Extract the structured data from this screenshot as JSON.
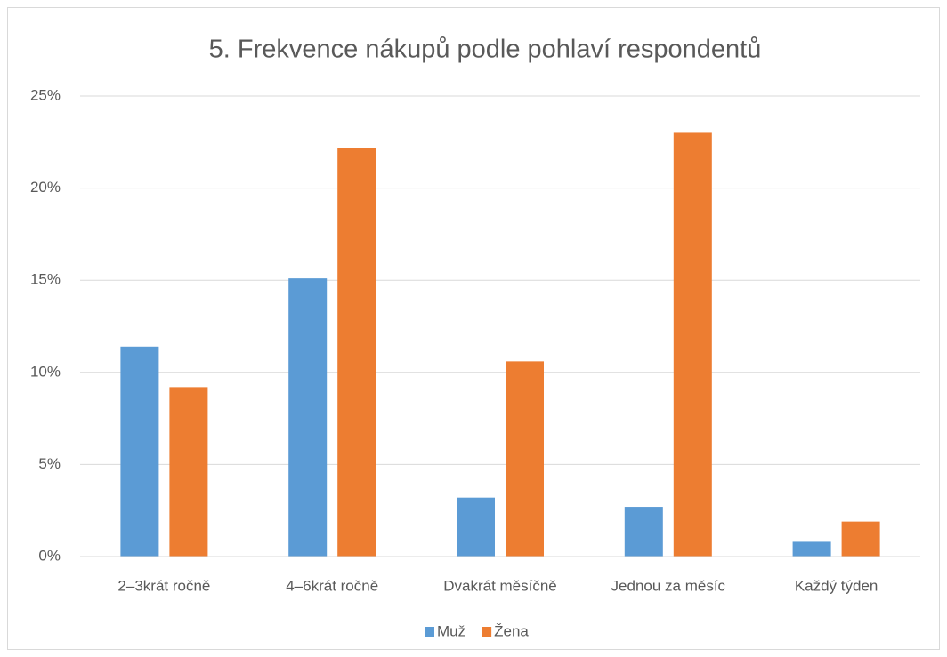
{
  "chart_data": {
    "type": "bar",
    "title": "5. Frekvence nákupů podle pohlaví respondentů",
    "categories": [
      "2–3krát ročně",
      "4–6krát ročně",
      "Dvakrát měsíčně",
      "Jednou za měsíc",
      "Každý týden"
    ],
    "series": [
      {
        "name": "Muž",
        "color": "#5b9bd5",
        "values": [
          11.4,
          15.1,
          3.2,
          2.7,
          0.8
        ]
      },
      {
        "name": "Žena",
        "color": "#ed7d31",
        "values": [
          9.2,
          22.2,
          10.6,
          23.0,
          1.9
        ]
      }
    ],
    "ylim": [
      0,
      25
    ],
    "yticks": [
      {
        "value": 0,
        "label": "0%"
      },
      {
        "value": 5,
        "label": "5%"
      },
      {
        "value": 10,
        "label": "10%"
      },
      {
        "value": 15,
        "label": "15%"
      },
      {
        "value": 20,
        "label": "20%"
      },
      {
        "value": 25,
        "label": "25%"
      }
    ],
    "grid": true,
    "legend": "bottom"
  }
}
